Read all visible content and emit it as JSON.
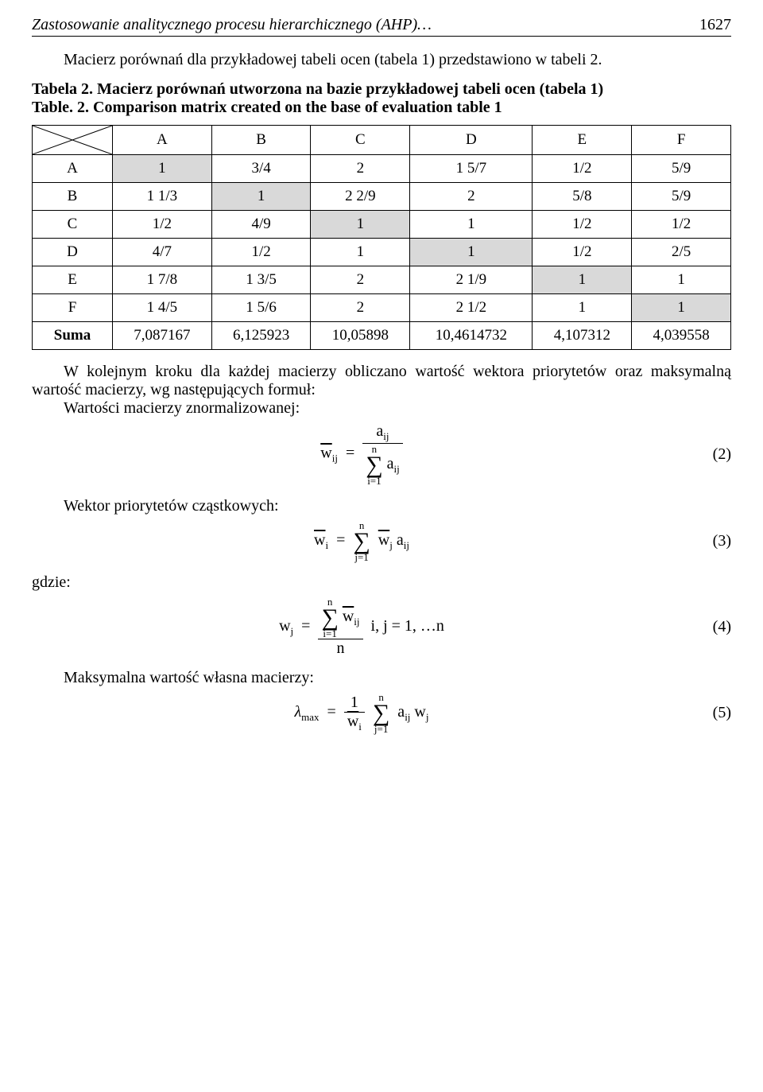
{
  "header": {
    "running_title": "Zastosowanie analitycznego procesu hierarchicznego (AHP)…",
    "page_number": "1627"
  },
  "para1": "Macierz porównań dla przykładowej tabeli ocen (tabela 1) przedstawiono w tabeli 2.",
  "table2": {
    "caption_pl": "Tabela 2. Macierz porównań utworzona na bazie przykładowej tabeli ocen (tabela 1)",
    "caption_en": "Table. 2. Comparison matrix created on the base of evaluation table 1",
    "columns": [
      "A",
      "B",
      "C",
      "D",
      "E",
      "F"
    ],
    "rows": [
      {
        "h": "A",
        "cells": [
          "1",
          "3/4",
          "2",
          "1 5/7",
          "1/2",
          "5/9"
        ],
        "shade": [
          true,
          false,
          false,
          false,
          false,
          false
        ]
      },
      {
        "h": "B",
        "cells": [
          "1 1/3",
          "1",
          "2 2/9",
          "2",
          "5/8",
          "5/9"
        ],
        "shade": [
          false,
          true,
          false,
          false,
          false,
          false
        ]
      },
      {
        "h": "C",
        "cells": [
          "1/2",
          "4/9",
          "1",
          "1",
          "1/2",
          "1/2"
        ],
        "shade": [
          false,
          false,
          true,
          false,
          false,
          false
        ]
      },
      {
        "h": "D",
        "cells": [
          "4/7",
          "1/2",
          "1",
          "1",
          "1/2",
          "2/5"
        ],
        "shade": [
          false,
          false,
          false,
          true,
          false,
          false
        ]
      },
      {
        "h": "E",
        "cells": [
          "1 7/8",
          "1 3/5",
          "2",
          "2 1/9",
          "1",
          "1"
        ],
        "shade": [
          false,
          false,
          false,
          false,
          true,
          false
        ]
      },
      {
        "h": "F",
        "cells": [
          "1 4/5",
          "1 5/6",
          "2",
          "2 1/2",
          "1",
          "1"
        ],
        "shade": [
          false,
          false,
          false,
          false,
          false,
          true
        ]
      }
    ],
    "sum_label": "Suma",
    "sum_row": [
      "7,087167",
      "6,125923",
      "10,05898",
      "10,4614732",
      "4,107312",
      "4,039558"
    ],
    "shade_color": "#d9d9d9"
  },
  "para2": "W kolejnym kroku dla każdej macierzy obliczano wartość wektora priorytetów oraz maksymalną wartość macierzy, wg następujących formuł:",
  "labels": {
    "norm": "Wartości macierzy znormalizowanej:",
    "prio": "Wektor priorytetów cząstkowych:",
    "where": "gdzie:",
    "own": "Maksymalna wartość własna macierzy:"
  },
  "eq": {
    "n2": "(2)",
    "n3": "(3)",
    "n4": "(4)",
    "n5": "(5)",
    "ij_suffix": "i, j = 1, …n"
  }
}
